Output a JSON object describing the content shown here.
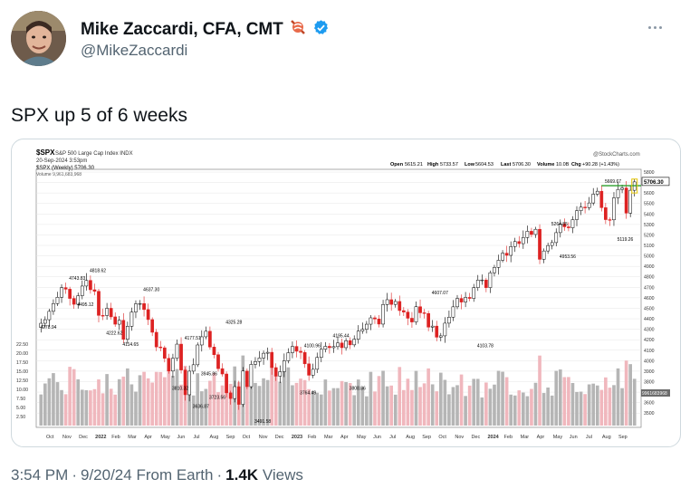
{
  "author": {
    "name": "Mike Zaccardi, CFA, CMT",
    "handle": "@MikeZaccardi",
    "emoji_icon": "candy-icon",
    "verified_icon": "verified-badge-icon",
    "verified_color": "#1d9bf0"
  },
  "tweet": {
    "text": "SPX up 5 of 6 weeks",
    "time": "3:54 PM",
    "date": "9/20/24",
    "source": "From Earth",
    "views_count": "1.4K",
    "views_label": "Views"
  },
  "chart_header": {
    "symbol": "$SPX",
    "name": "S&P 500 Large Cap Index INDX",
    "date_line": "20-Sep-2024 3:53pm",
    "legend_main": "$SPX (Weekly) 5706.30",
    "legend_volume": "Volume 9,961,683,968",
    "watermark": "@StockCharts.com",
    "open_label": "Open",
    "open": "5615.21",
    "high_label": "High",
    "high": "5733.57",
    "low_label": "Low",
    "low": "5604.53",
    "last_label": "Last",
    "last": "5706.30",
    "volume_label": "Volume",
    "volume": "10.0B",
    "chg_label": "Chg",
    "chg": "+90.28 (+1.43%)",
    "price_tag": "5706.30",
    "vol_tag": "9961683968"
  },
  "chart_data": {
    "type": "candlestick",
    "price_axis": {
      "ylim": [
        3450,
        5800
      ],
      "ticks": [
        3500,
        3600,
        3700,
        3800,
        3900,
        4000,
        4100,
        4200,
        4300,
        4400,
        4500,
        4600,
        4700,
        4800,
        4900,
        5000,
        5100,
        5200,
        5300,
        5400,
        5500,
        5600,
        5700,
        5800
      ]
    },
    "volume_axis": {
      "ticks": [
        2.5,
        5.0,
        7.5,
        10.0,
        12.5,
        15.0,
        17.5,
        20.0,
        22.5
      ],
      "tick_labels": [
        "2.50",
        "5.00",
        "7.50",
        "10.00",
        "12.50",
        "15.00",
        "17.50",
        "20.00",
        "22.50"
      ]
    },
    "x_labels": [
      "Oct",
      "Nov",
      "Dec",
      "2022",
      "Feb",
      "Mar",
      "Apr",
      "May",
      "Jun",
      "Jul",
      "Aug",
      "Sep",
      "Oct",
      "Nov",
      "Dec",
      "2023",
      "Feb",
      "Mar",
      "Apr",
      "May",
      "Jun",
      "Jul",
      "Aug",
      "Sep",
      "Oct",
      "Nov",
      "Dec",
      "2024",
      "Feb",
      "Mar",
      "Apr",
      "May",
      "Jun",
      "Jul",
      "Aug",
      "Sep"
    ],
    "closes": [
      4357,
      4391,
      4471,
      4545,
      4605,
      4697,
      4682,
      4594,
      4538,
      4620,
      4712,
      4766,
      4677,
      4662,
      4432,
      4431,
      4500,
      4418,
      4348,
      4385,
      4204,
      4328,
      4464,
      4543,
      4545,
      4488,
      4392,
      4271,
      4131,
      4123,
      4023,
      3901,
      4023,
      4158,
      3911,
      3675,
      3900,
      3961,
      4150,
      4228,
      4281,
      4130,
      4057,
      3924,
      3873,
      3693,
      3639,
      3752,
      3583,
      3901,
      3752,
      3965,
      3992,
      4026,
      4071,
      4080,
      3934,
      3852,
      3895,
      3999,
      4076,
      4136,
      4090,
      4079,
      3970,
      3861,
      3918,
      4031,
      4109,
      4137,
      4124,
      4134,
      4169,
      4124,
      4191,
      4151,
      4205,
      4282,
      4299,
      4348,
      4409,
      4398,
      4349,
      4536,
      4582,
      4537,
      4565,
      4478,
      4464,
      4405,
      4369,
      4515,
      4457,
      4450,
      4320,
      4330,
      4224,
      4237,
      4358,
      4415,
      4514,
      4594,
      4559,
      4604,
      4594,
      4697,
      4769,
      4770,
      4697,
      4839,
      4890,
      4958,
      5026,
      5005,
      5089,
      5137,
      5117,
      5175,
      5235,
      5204,
      5254,
      4967,
      5047,
      5099,
      5127,
      5222,
      5304,
      5277,
      5268,
      5346,
      5431,
      5465,
      5460,
      5505,
      5589,
      5617,
      5460,
      5346,
      5344,
      5554,
      5634,
      5648,
      5408,
      5626,
      5706
    ],
    "annotations": [
      {
        "label": "4278.94",
        "x": 2,
        "y": 4278.94
      },
      {
        "label": "4743.83",
        "x": 9,
        "y": 4743.83
      },
      {
        "label": "4495.12",
        "x": 11,
        "y": 4495.12
      },
      {
        "label": "4818.62",
        "x": 14,
        "y": 4818.62
      },
      {
        "label": "4222.62",
        "x": 18,
        "y": 4222.62
      },
      {
        "label": "4114.65",
        "x": 22,
        "y": 4114.65
      },
      {
        "label": "4637.30",
        "x": 27,
        "y": 4637.3
      },
      {
        "label": "4177.51",
        "x": 37,
        "y": 4177.51
      },
      {
        "label": "3945.86",
        "x": 41,
        "y": 3945.86
      },
      {
        "label": "3810.32",
        "x": 34,
        "y": 3810.32
      },
      {
        "label": "3723.56",
        "x": 43,
        "y": 3723.56
      },
      {
        "label": "3636.87",
        "x": 39,
        "y": 3636.87
      },
      {
        "label": "4325.28",
        "x": 47,
        "y": 4325.28
      },
      {
        "label": "3491.58",
        "x": 54,
        "y": 3491.58
      },
      {
        "label": "4100.96",
        "x": 66,
        "y": 4100.96
      },
      {
        "label": "3764.49",
        "x": 65,
        "y": 3764.49
      },
      {
        "label": "4195.44",
        "x": 73,
        "y": 4195.44
      },
      {
        "label": "3808.86",
        "x": 77,
        "y": 3808.86
      },
      {
        "label": "4607.07",
        "x": 97,
        "y": 4607.07
      },
      {
        "label": "4103.78",
        "x": 108,
        "y": 4103.78
      },
      {
        "label": "5264.85",
        "x": 126,
        "y": 5264.85
      },
      {
        "label": "4953.56",
        "x": 128,
        "y": 4953.56
      },
      {
        "label": "5669.67",
        "x": 139,
        "y": 5669.67
      },
      {
        "label": "5119.26",
        "x": 142,
        "y": 5119.26
      }
    ],
    "resistance_level": 5670
  }
}
